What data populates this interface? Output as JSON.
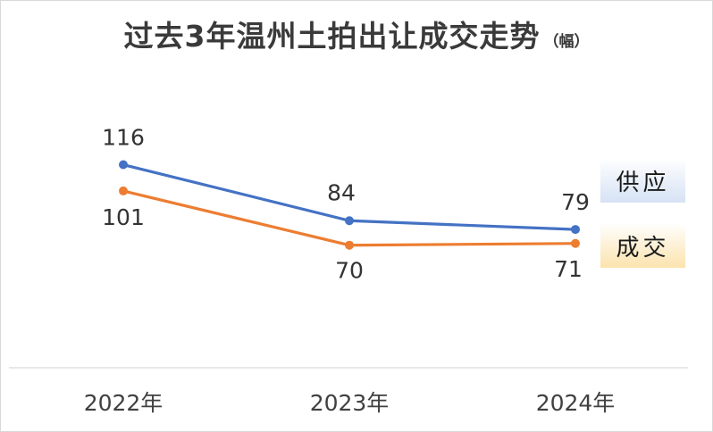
{
  "chart_data": {
    "type": "line",
    "title": "过去3年温州土拍出让成交走势",
    "unit": "（幅）",
    "categories": [
      "2022年",
      "2023年",
      "2024年"
    ],
    "series": [
      {
        "name": "供应",
        "values": [
          116,
          84,
          79
        ],
        "data_labels": [
          "116",
          "84",
          "79"
        ],
        "color": "#4472c4",
        "legend_color": "#d6e2f4"
      },
      {
        "name": "成交",
        "values": [
          101,
          70,
          71
        ],
        "data_labels": [
          "101",
          "70",
          "71"
        ],
        "color": "#ed7d31",
        "legend_color": "#fbe3ad"
      }
    ],
    "ylim": [
      0,
      180
    ],
    "grid": false,
    "legend_position": "right"
  }
}
